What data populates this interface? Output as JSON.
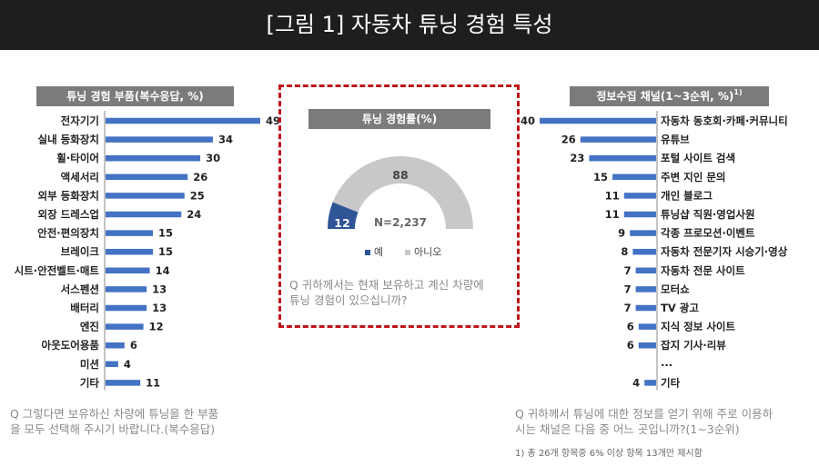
{
  "title": "[그림 1] 자동차 튜닝 경험 특성",
  "left_panel": {
    "header": "튜닝 경험 부품(복수응답, %)",
    "question": [
      "Q 그렇다면 보유하신 차량에 튜닝을 한 부품",
      "을 모두 선택해 주시기 바랍니다.(복수응답)"
    ]
  },
  "center_panel": {
    "header": "튜닝 경험률(%)",
    "n_label": "N=2,237",
    "legend": [
      "예",
      "아니오"
    ],
    "question": [
      "Q 귀하께서는 현재 보유하고 계신 차량에",
      "튜닝 경험이 있으십니까?"
    ]
  },
  "right_panel": {
    "header": "정보수집 채널(1~3순위, %)",
    "header_sup": "1)",
    "ellipsis": "...",
    "question": [
      "Q 귀하께서 튜닝에 대한 정보를 얻기 위해 주로 이용하",
      "시는 채널은 다음 중 어느 곳입니까?(1~3순위)"
    ],
    "footnote": "1) 총 26개 항목중 6% 이상 항목 13개만 제시함"
  },
  "colors": {
    "bar": "#4472c4",
    "yes": "#2f5597",
    "no": "#c8c8c8",
    "header_bg": "#7b7b7b",
    "title_bg": "#1e1e1e",
    "frame": "#c0141c"
  },
  "chart_data": [
    {
      "type": "bar",
      "orientation": "horizontal",
      "title": "튜닝 경험 부품(복수응답, %)",
      "categories": [
        "전자기기",
        "실내 등화장치",
        "휠·타이어",
        "액세서리",
        "외부 등화장치",
        "외장 드레스업",
        "안전·편의장치",
        "브레이크",
        "시트·안전벨트·매트",
        "서스펜션",
        "배터리",
        "엔진",
        "아웃도어용품",
        "미션",
        "기타"
      ],
      "values": [
        49,
        34,
        30,
        26,
        25,
        24,
        15,
        15,
        14,
        13,
        13,
        12,
        6,
        4,
        11
      ]
    },
    {
      "type": "pie",
      "subtype": "half-donut",
      "title": "튜닝 경험률(%)",
      "categories": [
        "예",
        "아니오"
      ],
      "values": [
        12,
        88
      ]
    },
    {
      "type": "bar",
      "orientation": "horizontal",
      "title": "정보수집 채널(1~3순위, %)",
      "categories": [
        "자동차 동호회·카페·커뮤니티",
        "유튜브",
        "포털 사이트 검색",
        "주변 지인 문의",
        "개인 블로그",
        "튜닝샵 직원·영업사원",
        "각종 프로모션·이벤트",
        "자동차 전문기자 시승기·영상",
        "자동차 전문 사이트",
        "모터쇼",
        "TV 광고",
        "지식 정보 사이트",
        "잡지 기사·리뷰",
        "기타"
      ],
      "values": [
        40,
        26,
        23,
        15,
        11,
        11,
        9,
        8,
        7,
        7,
        7,
        6,
        6,
        4
      ]
    }
  ]
}
